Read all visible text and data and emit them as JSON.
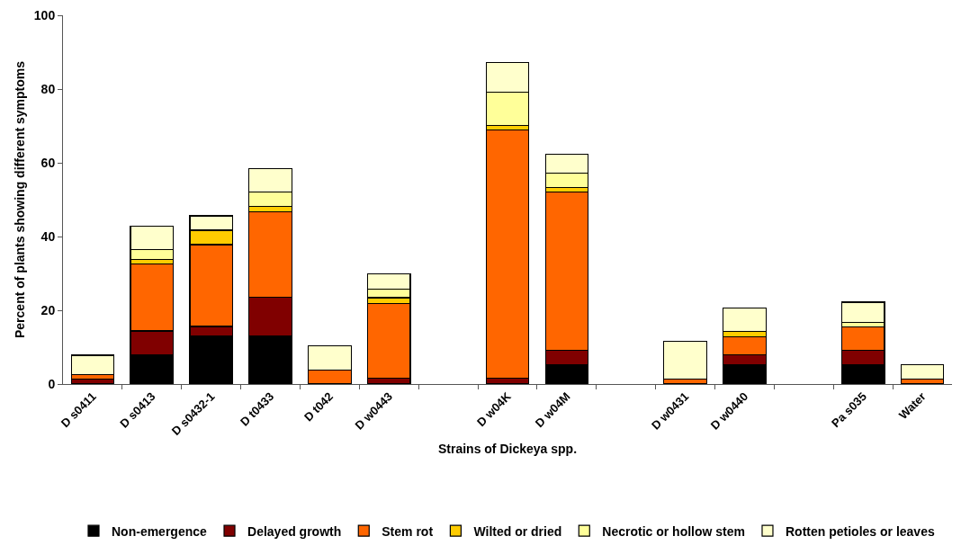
{
  "chart_data": {
    "type": "bar",
    "stacked": true,
    "xlabel": "Strains of Dickeya spp.",
    "ylabel": "Percent of plants showing different symptoms",
    "categories": [
      "D s0411",
      "D s0413",
      "D s0432-1",
      "D t0433",
      "D t042",
      "D w0443",
      null,
      "D w04K",
      "D w04M",
      null,
      "D w0431",
      "D w0440",
      null,
      "Pa s035",
      "Water"
    ],
    "series": [
      {
        "name": "Non-emergence",
        "color": "#000000",
        "values": [
          0,
          7.9,
          13.0,
          13.0,
          0,
          0,
          null,
          0,
          5.3,
          null,
          0,
          5.3,
          null,
          5.3,
          0
        ]
      },
      {
        "name": "Delayed growth",
        "color": "#800000",
        "values": [
          1.4,
          6.5,
          2.6,
          10.5,
          0,
          1.6,
          null,
          1.5,
          3.9,
          null,
          0,
          2.6,
          null,
          3.9,
          0
        ]
      },
      {
        "name": "Stem rot",
        "color": "#ff6600",
        "values": [
          1.1,
          18.2,
          22.2,
          23.3,
          3.8,
          20.3,
          null,
          67.4,
          42.9,
          null,
          1.3,
          5.0,
          null,
          6.3,
          1.3
        ]
      },
      {
        "name": "Wilted or dried",
        "color": "#ffcc00",
        "values": [
          0,
          1.1,
          3.9,
          1.3,
          0,
          1.5,
          null,
          1.3,
          1.2,
          null,
          0,
          1.3,
          null,
          0,
          0
        ]
      },
      {
        "name": "Necrotic or hollow stem",
        "color": "#ffff99",
        "values": [
          0,
          2.8,
          0,
          4.0,
          0,
          2.4,
          null,
          9.0,
          3.9,
          null,
          0,
          0,
          null,
          1.3,
          0
        ]
      },
      {
        "name": "Rotten petioles or leaves",
        "color": "#ffffcc",
        "values": [
          5.3,
          6.4,
          3.9,
          6.4,
          6.6,
          4.1,
          null,
          7.9,
          5.2,
          null,
          10.3,
          6.5,
          null,
          5.4,
          3.9
        ]
      }
    ],
    "ylim": [
      0,
      100
    ],
    "yticks": [
      0,
      20,
      40,
      60,
      80,
      100
    ],
    "grid": false,
    "legend": "bottom"
  }
}
